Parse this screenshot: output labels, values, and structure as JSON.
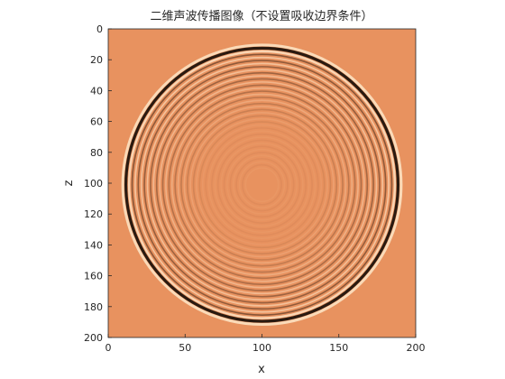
{
  "chart_data": {
    "type": "heatmap",
    "title": "二维声波传播图像（不设置吸收边界条件）",
    "xlabel": "x",
    "ylabel": "z",
    "xlim": [
      0,
      200
    ],
    "ylim": [
      0,
      200
    ],
    "y_reversed": true,
    "x_ticks": [
      0,
      50,
      100,
      150,
      200
    ],
    "y_ticks": [
      0,
      20,
      40,
      60,
      80,
      100,
      120,
      140,
      160,
      180,
      200
    ],
    "grid": false,
    "legend": "none",
    "wavefront": {
      "center_x": 100,
      "center_z": 101,
      "radius": 88.5
    },
    "colors": {
      "background": "#e8925f",
      "trough": "#2a1a10",
      "crest": "#fde6c8",
      "axis": "#262626"
    }
  }
}
